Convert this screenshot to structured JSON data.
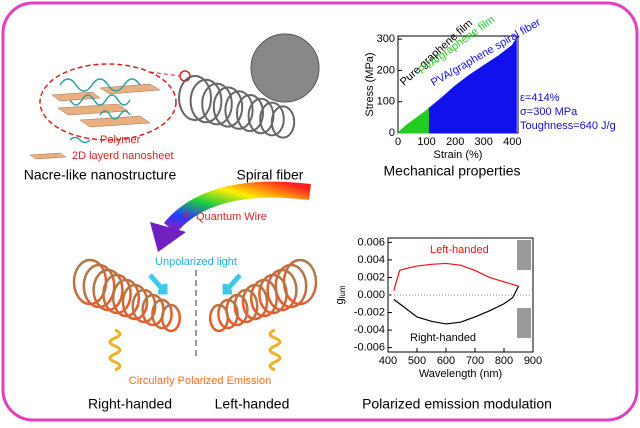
{
  "labels": {
    "polymer": "Polymer",
    "nanosheet": "2D layerd nanosheet",
    "nacre": "Nacre-like nanostructure",
    "spiral_fiber": "Spiral fiber",
    "mechanical": "Mechanical properties",
    "plus": "+",
    "quantum_wire": "Quantum Wire",
    "unpolarized": "Unpolarized light",
    "cpe": "Circularly Polarized Emission",
    "right": "Right-handed",
    "left": "Left-handed",
    "modulation": "Polarized emission modulation"
  },
  "chart_data": [
    {
      "type": "area",
      "xlabel": "Strain (%)",
      "ylabel": "Stress (MPa)",
      "xlim": [
        0,
        420
      ],
      "ylim": [
        0,
        310
      ],
      "xticks": [
        0,
        100,
        200,
        300,
        400
      ],
      "yticks": [
        0,
        100,
        200,
        300
      ],
      "series": [
        {
          "name": "Pure graphene film",
          "color": "#000000",
          "x": [
            0,
            10,
            20
          ],
          "values": [
            0,
            8,
            15
          ]
        },
        {
          "name": "PVA/graphene film",
          "color": "#22cc22",
          "x": [
            0,
            30,
            60,
            90,
            110
          ],
          "values": [
            0,
            25,
            45,
            65,
            80
          ]
        },
        {
          "name": "PVA/graphene spiral fiber",
          "color": "#1111ee",
          "x": [
            110,
            150,
            200,
            250,
            300,
            350,
            400,
            414
          ],
          "values": [
            80,
            110,
            150,
            185,
            215,
            245,
            280,
            300
          ]
        }
      ],
      "annotations": [
        "ε=414%",
        "σ=300 MPa",
        "Toughness=640 J/g"
      ]
    },
    {
      "type": "line",
      "xlabel": "Wavelength (nm)",
      "ylabel": "g",
      "ylabel_sub": "lum",
      "xlim": [
        400,
        900
      ],
      "ylim": [
        -0.0065,
        0.0065
      ],
      "xticks": [
        400,
        500,
        600,
        700,
        800,
        900
      ],
      "yticks": [
        -0.006,
        -0.004,
        -0.002,
        {
          "value": 0,
          "label": "0.000"
        },
        0.002,
        0.004,
        0.006
      ],
      "x": [
        420,
        440,
        460,
        500,
        550,
        600,
        650,
        700,
        750,
        800,
        830,
        850
      ],
      "series": [
        {
          "name": "Left-handed",
          "color": "#ee1111",
          "values": [
            0.0005,
            0.0028,
            0.003,
            0.0033,
            0.0035,
            0.0036,
            0.0034,
            0.0028,
            0.002,
            0.0015,
            0.0012,
            0.001
          ]
        },
        {
          "name": "Right-handed",
          "color": "#000000",
          "values": [
            -0.0005,
            -0.001,
            -0.0015,
            -0.0025,
            -0.003,
            -0.0033,
            -0.0031,
            -0.0025,
            -0.0018,
            -0.001,
            -0.0003,
            0.001
          ]
        }
      ]
    }
  ]
}
